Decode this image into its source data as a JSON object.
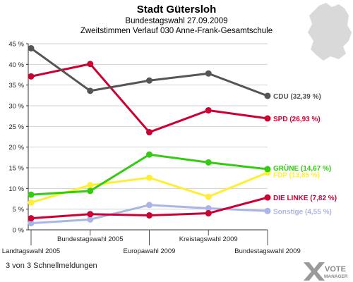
{
  "chart_data": {
    "type": "line",
    "title": "Stadt Gütersloh",
    "subtitle": "Bundestagswahl 27.09.2009",
    "subtitle2": "Zweitstimmen Verlauf 030 Anne-Frank-Gesamtschule",
    "categories": [
      "Landtagswahl 2005",
      "Bundestagswahl 2005",
      "Europawahl 2009",
      "Kreistagswahl 2009",
      "Bundestagswahl 2009"
    ],
    "ylim": [
      0,
      45
    ],
    "yticks": [
      "0 %",
      "5 %",
      "10 %",
      "15 %",
      "20 %",
      "25 %",
      "30 %",
      "35 %",
      "40 %",
      "45 %"
    ],
    "series": [
      {
        "name": "CDU",
        "label": "CDU (32,39 %)",
        "color": "#555555",
        "values": [
          43.9,
          33.6,
          36.1,
          37.8,
          32.39
        ]
      },
      {
        "name": "SPD",
        "label": "SPD (26,93 %)",
        "color": "#cc0033",
        "values": [
          37.1,
          40.1,
          23.6,
          28.9,
          26.93
        ]
      },
      {
        "name": "GRÜNE",
        "label": "GRÜNE (14,67 %)",
        "color": "#33cc11",
        "values": [
          8.5,
          9.4,
          18.2,
          16.3,
          14.67
        ]
      },
      {
        "name": "FDP",
        "label": "FDP (13,85 %)",
        "color": "#ffee33",
        "values": [
          6.6,
          10.8,
          12.6,
          8.0,
          13.85
        ]
      },
      {
        "name": "DIE LINKE",
        "label": "DIE LINKE (7,82 %)",
        "color": "#cc0033",
        "values": [
          2.8,
          3.8,
          3.5,
          4.0,
          7.82
        ]
      },
      {
        "name": "Sonstige",
        "label": "Sonstige (4,55 %)",
        "color": "#aab4e6",
        "values": [
          1.6,
          2.5,
          6.0,
          5.2,
          4.55
        ]
      }
    ]
  },
  "footer": {
    "text": "3 von 3 Schnellmeldungen",
    "logo_line1": "VOTE",
    "logo_line2": "MANAGER"
  }
}
